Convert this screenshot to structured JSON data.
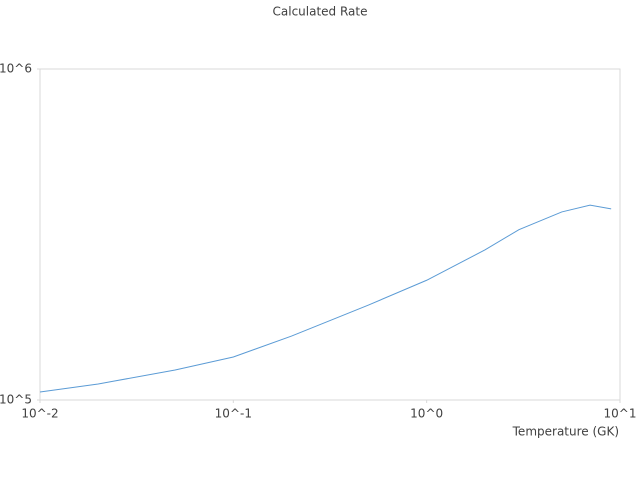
{
  "chart_data": {
    "type": "line",
    "title": "Calculated Rate",
    "x_label": "Temperature (GK)",
    "x": [
      0.01,
      0.02,
      0.05,
      0.1,
      0.2,
      0.5,
      1,
      2,
      3,
      5,
      7,
      9
    ],
    "series": [
      {
        "color": "#5b9bd5",
        "values": [
          105700,
          111800,
          123200,
          134900,
          156000,
          193600,
          230000,
          284000,
          327000,
          370000,
          388000,
          378000
        ]
      }
    ],
    "xscale": "log",
    "yscale": "log",
    "xlim": [
      0.01,
      10
    ],
    "ylim": [
      100000,
      1000000
    ],
    "xticks": [
      {
        "value": 0.01,
        "label": "10^-2"
      },
      {
        "value": 0.1,
        "label": "10^-1"
      },
      {
        "value": 1,
        "label": "10^0"
      },
      {
        "value": 10,
        "label": "10^1"
      }
    ],
    "yticks": [
      {
        "value": 100000,
        "label": "10^5"
      },
      {
        "value": 1000000,
        "label": "10^6"
      }
    ]
  }
}
